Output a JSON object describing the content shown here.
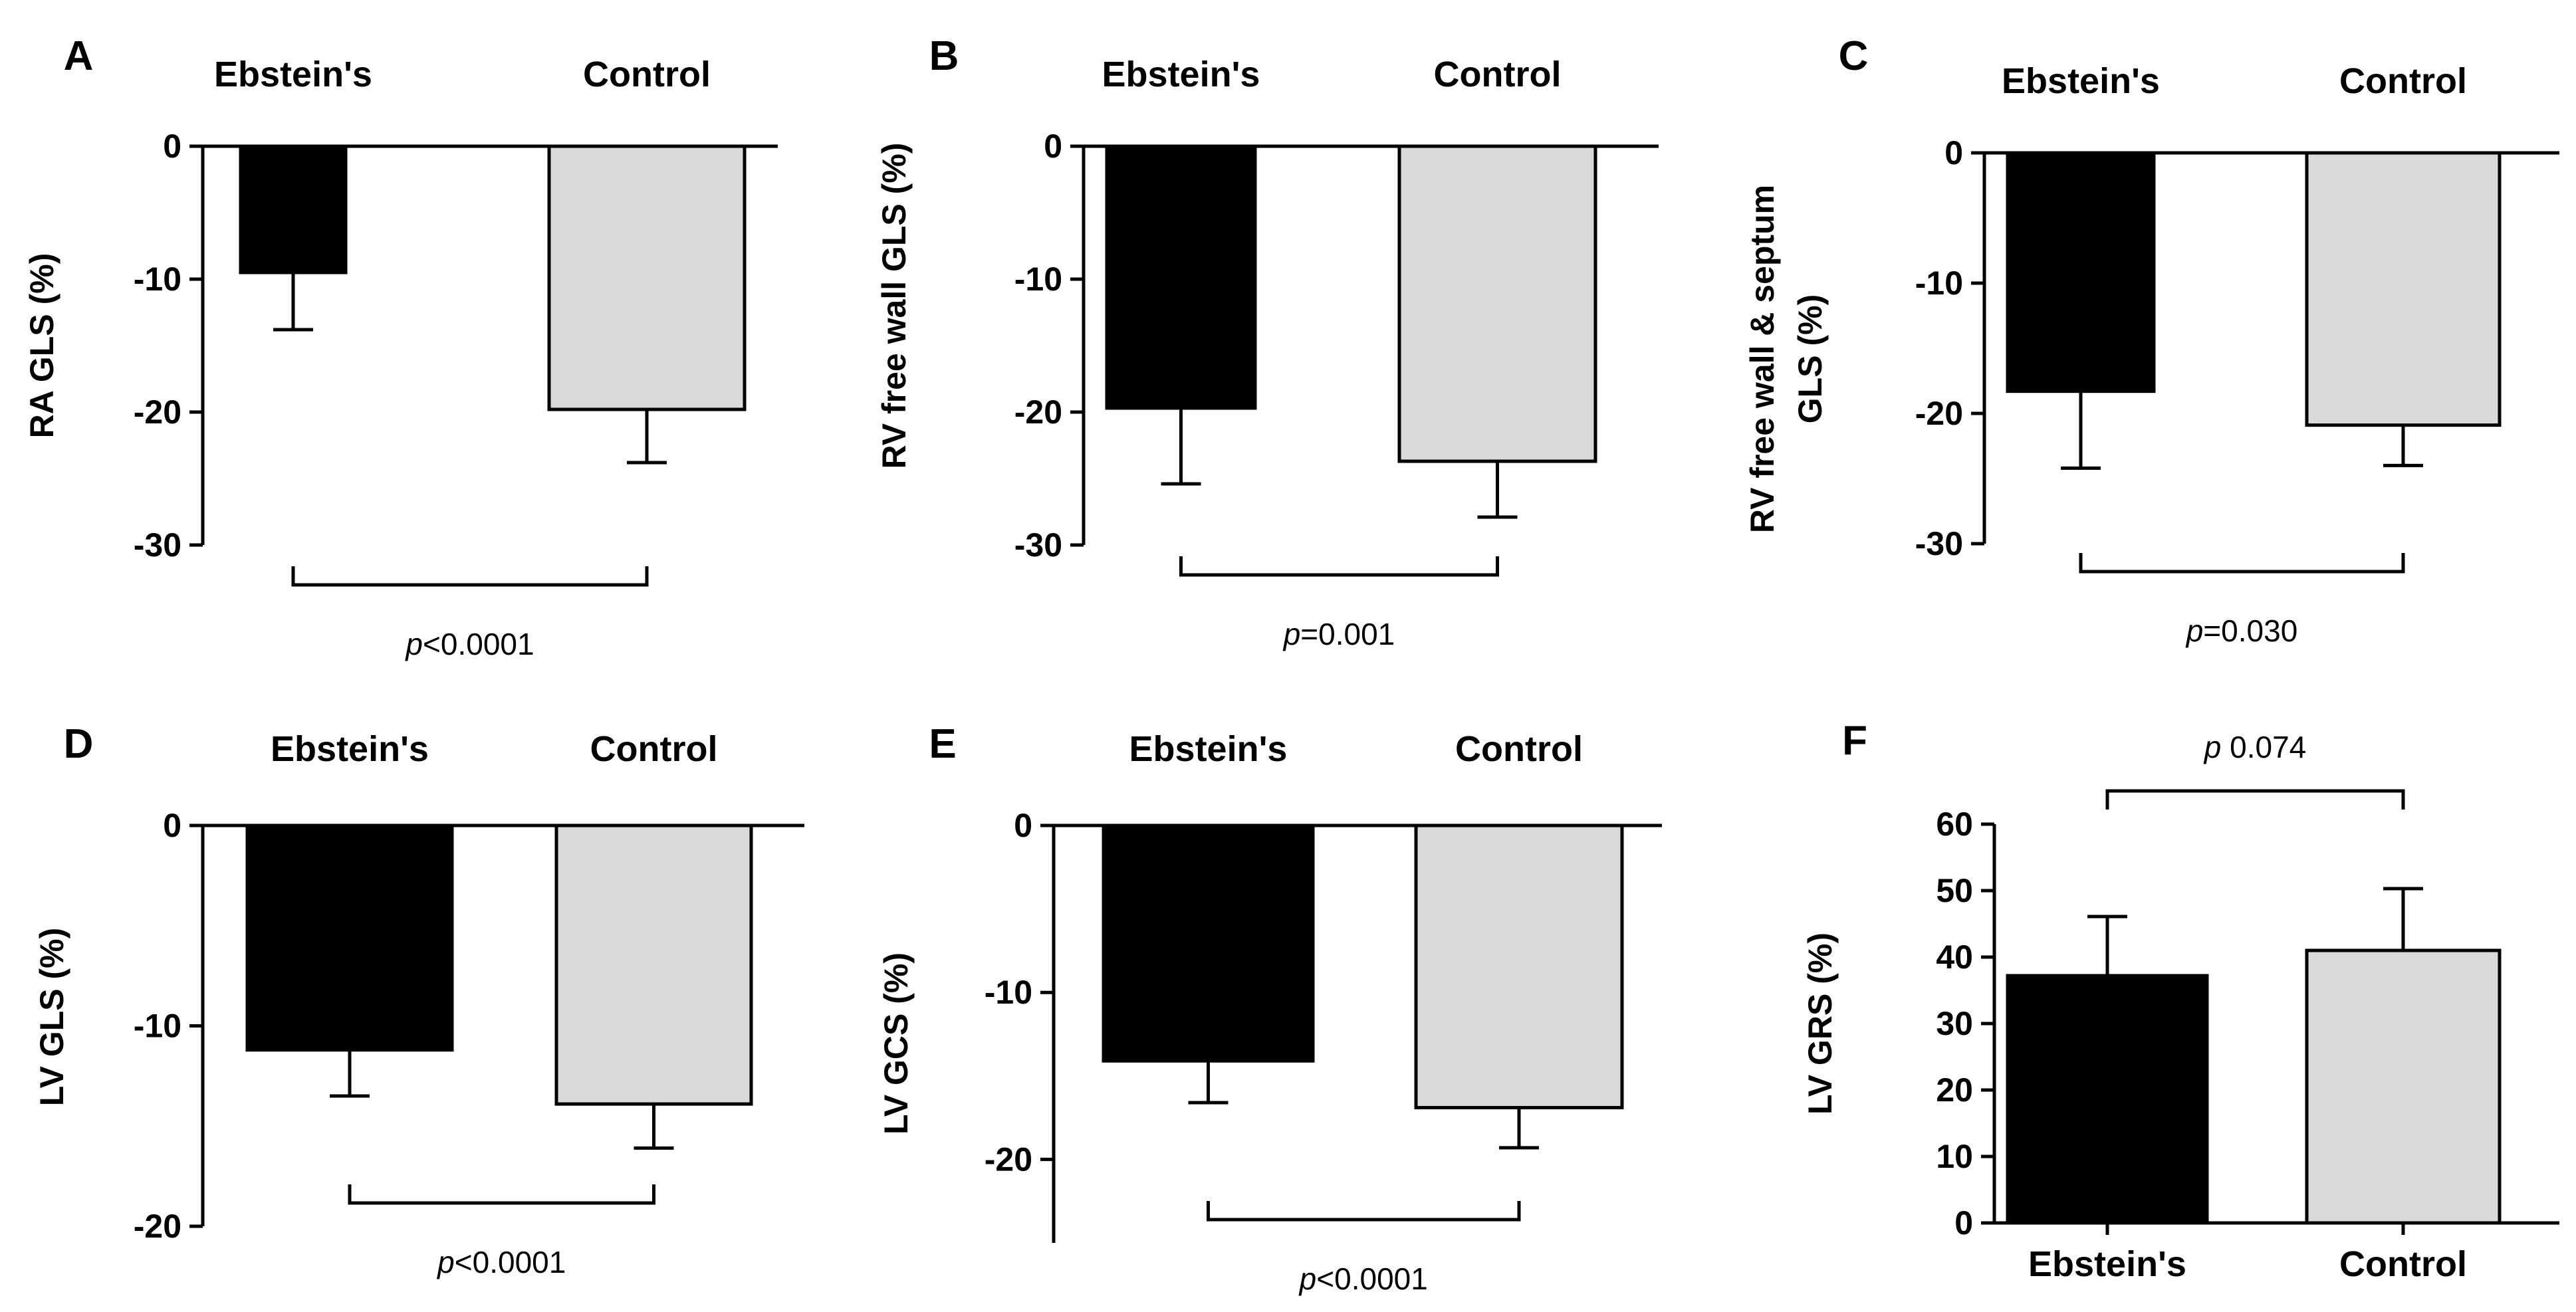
{
  "chart_data": [
    {
      "panel": "A",
      "type": "bar",
      "categories": [
        "Ebstein's",
        "Control"
      ],
      "values": [
        -9.5,
        -19.8
      ],
      "errors": [
        4.3,
        4.0
      ],
      "ylabel": "RA GLS (%)",
      "ylim": [
        -30,
        0
      ],
      "yticks": [
        "0",
        "-10",
        "-20",
        "-30"
      ],
      "category_axis": "top",
      "colors": [
        "#000000",
        "#d9d9d9"
      ],
      "significance": {
        "p_symbol": "p",
        "p_text": "<0.0001"
      }
    },
    {
      "panel": "B",
      "type": "bar",
      "categories": [
        "Ebstein's",
        "Control"
      ],
      "values": [
        -19.7,
        -23.7
      ],
      "errors": [
        5.7,
        4.2
      ],
      "ylabel": "RV free wall GLS (%)",
      "ylim": [
        -30,
        0
      ],
      "yticks": [
        "0",
        "-10",
        "-20",
        "-30"
      ],
      "category_axis": "top",
      "colors": [
        "#000000",
        "#d9d9d9"
      ],
      "significance": {
        "p_symbol": "p",
        "p_text": "=0.001"
      }
    },
    {
      "panel": "C",
      "type": "bar",
      "categories": [
        "Ebstein's",
        "Control"
      ],
      "values": [
        -18.3,
        -20.9
      ],
      "errors": [
        5.9,
        3.1
      ],
      "ylabel": [
        "RV free wall & septum",
        "GLS (%)"
      ],
      "ylim": [
        -30,
        0
      ],
      "yticks": [
        "0",
        "-10",
        "-20",
        "-30"
      ],
      "category_axis": "top",
      "colors": [
        "#000000",
        "#d9d9d9"
      ],
      "significance": {
        "p_symbol": "p",
        "p_text": "=0.030"
      }
    },
    {
      "panel": "D",
      "type": "bar",
      "categories": [
        "Ebstein's",
        "Control"
      ],
      "values": [
        -11.2,
        -13.9
      ],
      "errors": [
        2.3,
        2.2
      ],
      "ylabel": "LV GLS (%)",
      "ylim": [
        -20,
        0
      ],
      "yticks": [
        "0",
        "-10",
        "-20"
      ],
      "category_axis": "top",
      "colors": [
        "#000000",
        "#d9d9d9"
      ],
      "significance": {
        "p_symbol": "p",
        "p_text": "<0.0001"
      }
    },
    {
      "panel": "E",
      "type": "bar",
      "categories": [
        "Ebstein's",
        "Control"
      ],
      "values": [
        -14.1,
        -16.9
      ],
      "errors": [
        2.5,
        2.4
      ],
      "ylabel": "LV GCS (%)",
      "ylim": [
        -25,
        0
      ],
      "yticks": [
        "0",
        "-10",
        "-20"
      ],
      "category_axis": "top",
      "colors": [
        "#000000",
        "#d9d9d9"
      ],
      "significance": {
        "p_symbol": "p",
        "p_text": "<0.0001"
      }
    },
    {
      "panel": "F",
      "type": "bar",
      "categories": [
        "Ebstein's",
        "Control"
      ],
      "values": [
        37.2,
        41.0
      ],
      "errors": [
        8.9,
        9.3
      ],
      "ylabel": "LV GRS (%)",
      "ylim": [
        0,
        60
      ],
      "yticks": [
        "0",
        "10",
        "20",
        "30",
        "40",
        "50",
        "60"
      ],
      "category_axis": "bottom",
      "colors": [
        "#000000",
        "#d9d9d9"
      ],
      "significance": {
        "p_symbol": "p",
        "p_text": " 0.074"
      }
    }
  ]
}
